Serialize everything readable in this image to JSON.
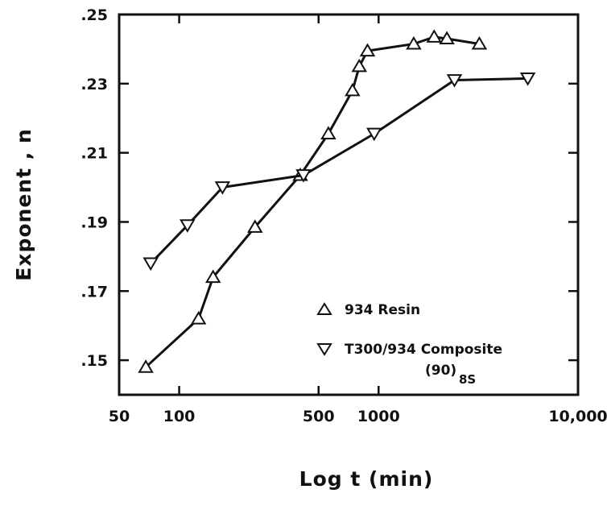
{
  "chart_data": {
    "type": "line",
    "title": "",
    "xlabel": "Log t (min)",
    "ylabel": "Exponent , n",
    "x_scale": "log",
    "xlim": [
      50,
      10000
    ],
    "ylim": [
      0.14,
      0.25
    ],
    "x_ticks": [
      {
        "value": 50,
        "label": "50"
      },
      {
        "value": 100,
        "label": "100"
      },
      {
        "value": 500,
        "label": "500"
      },
      {
        "value": 1000,
        "label": "1000"
      },
      {
        "value": 10000,
        "label": "10,000"
      }
    ],
    "y_ticks": [
      {
        "value": 0.15,
        "label": ".15"
      },
      {
        "value": 0.17,
        "label": ".17"
      },
      {
        "value": 0.19,
        "label": ".19"
      },
      {
        "value": 0.21,
        "label": ".21"
      },
      {
        "value": 0.23,
        "label": ".23"
      },
      {
        "value": 0.25,
        "label": ".25"
      }
    ],
    "grid": false,
    "legend_position": "bottom-right",
    "series": [
      {
        "name": "934 Resin",
        "marker": "triangle-up",
        "color": "#111111",
        "x": [
          68,
          125,
          148,
          240,
          405,
          560,
          740,
          800,
          880,
          1500,
          1900,
          2200,
          3200
        ],
        "y": [
          0.148,
          0.162,
          0.174,
          0.1885,
          0.2035,
          0.2155,
          0.228,
          0.235,
          0.2395,
          0.2415,
          0.2435,
          0.243,
          0.2415
        ]
      },
      {
        "name": "T300/934 Composite",
        "name_suffix": "(90)",
        "name_subscript": "8S",
        "marker": "triangle-down",
        "color": "#111111",
        "x": [
          72,
          110,
          165,
          420,
          950,
          2400,
          5600
        ],
        "y": [
          0.178,
          0.189,
          0.2,
          0.2035,
          0.2155,
          0.231,
          0.2315
        ]
      }
    ]
  }
}
